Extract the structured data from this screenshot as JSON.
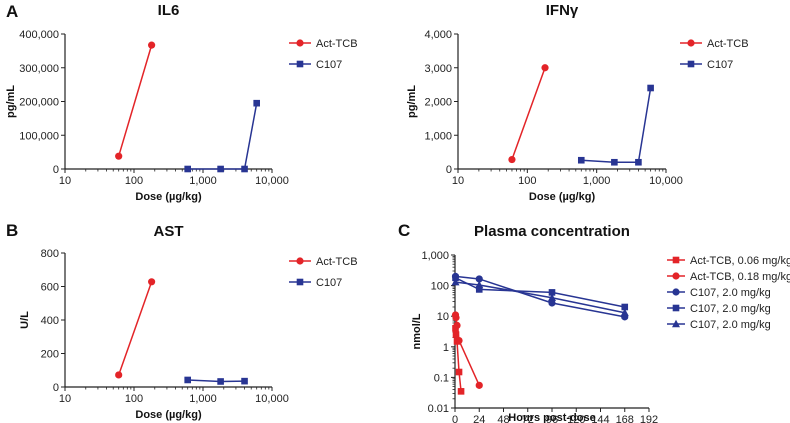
{
  "panel_letters": [
    "A",
    "B",
    "C"
  ],
  "colors": {
    "act": "#e32428",
    "c107": "#283593",
    "axis": "#222222"
  },
  "chart_data": [
    {
      "id": "il6",
      "type": "line",
      "title": "IL6",
      "xlabel": "Dose (µg/kg)",
      "ylabel": "pg/mL",
      "xscale": "log",
      "xlim": [
        10,
        10000
      ],
      "xticks": [
        10,
        100,
        1000,
        10000
      ],
      "xtick_labels": [
        "10",
        "100",
        "1,000",
        "10,000"
      ],
      "ylim": [
        0,
        400000
      ],
      "yticks": [
        0,
        100000,
        200000,
        300000,
        400000
      ],
      "ytick_labels": [
        "0",
        "100,000",
        "200,000",
        "300,000",
        "400,000"
      ],
      "legend_position": "top-right",
      "series": [
        {
          "name": "Act-TCB",
          "color": "#e32428",
          "marker": "circle",
          "x": [
            60,
            180
          ],
          "y": [
            38000,
            367000
          ]
        },
        {
          "name": "C107",
          "color": "#283593",
          "marker": "square",
          "x": [
            600,
            1800,
            4000,
            6000
          ],
          "y": [
            0,
            0,
            0,
            195000
          ]
        }
      ]
    },
    {
      "id": "ifng",
      "type": "line",
      "title": "IFNγ",
      "xlabel": "Dose (µg/kg)",
      "ylabel": "pg/mL",
      "xscale": "log",
      "xlim": [
        10,
        10000
      ],
      "xticks": [
        10,
        100,
        1000,
        10000
      ],
      "xtick_labels": [
        "10",
        "100",
        "1,000",
        "10,000"
      ],
      "ylim": [
        0,
        4000
      ],
      "yticks": [
        0,
        1000,
        2000,
        3000,
        4000
      ],
      "ytick_labels": [
        "0",
        "1,000",
        "2,000",
        "3,000",
        "4,000"
      ],
      "legend_position": "top-right",
      "series": [
        {
          "name": "Act-TCB",
          "color": "#e32428",
          "marker": "circle",
          "x": [
            60,
            180
          ],
          "y": [
            280,
            3000
          ]
        },
        {
          "name": "C107",
          "color": "#283593",
          "marker": "square",
          "x": [
            600,
            1800,
            4000,
            6000
          ],
          "y": [
            260,
            200,
            200,
            2400
          ]
        }
      ]
    },
    {
      "id": "ast",
      "type": "line",
      "title": "AST",
      "xlabel": "Dose (µg/kg)",
      "ylabel": "U/L",
      "xscale": "log",
      "xlim": [
        10,
        10000
      ],
      "xticks": [
        10,
        100,
        1000,
        10000
      ],
      "xtick_labels": [
        "10",
        "100",
        "1,000",
        "10,000"
      ],
      "ylim": [
        0,
        800
      ],
      "yticks": [
        0,
        200,
        400,
        600,
        800
      ],
      "ytick_labels": [
        "0",
        "200",
        "400",
        "600",
        "800"
      ],
      "legend_position": "top-right",
      "series": [
        {
          "name": "Act-TCB",
          "color": "#e32428",
          "marker": "circle",
          "x": [
            60,
            180
          ],
          "y": [
            72,
            628
          ]
        },
        {
          "name": "C107",
          "color": "#283593",
          "marker": "square",
          "x": [
            600,
            1800,
            4000
          ],
          "y": [
            42,
            33,
            35
          ]
        }
      ]
    },
    {
      "id": "pk",
      "type": "line",
      "title": "Plasma concentration",
      "xlabel": "Hours post-dose",
      "ylabel": "nmol/L",
      "xscale": "linear",
      "xlim": [
        0,
        192
      ],
      "xticks": [
        0,
        24,
        48,
        72,
        96,
        120,
        144,
        168,
        192
      ],
      "xtick_labels": [
        "0",
        "24",
        "48",
        "72",
        "96",
        "120",
        "144",
        "168",
        "192"
      ],
      "yscale": "log",
      "ylim": [
        0.01,
        1000
      ],
      "yticks": [
        0.01,
        0.1,
        1,
        10,
        100,
        1000
      ],
      "ytick_labels": [
        "0.01",
        "0.1",
        "1",
        "10",
        "100",
        "1,000"
      ],
      "legend_position": "right",
      "series": [
        {
          "name": "Act-TCB, 0.06 mg/kg",
          "color": "#e32428",
          "marker": "square",
          "x": [
            0.5,
            1,
            2,
            4,
            6
          ],
          "y": [
            4,
            2.5,
            1.5,
            0.15,
            0.035
          ]
        },
        {
          "name": "Act-TCB, 0.18 mg/kg",
          "color": "#e32428",
          "marker": "circle",
          "x": [
            0.5,
            1,
            2,
            4,
            24
          ],
          "y": [
            11,
            9,
            5,
            1.6,
            0.055
          ]
        },
        {
          "name": "C107, 2.0 mg/kg",
          "color": "#283593",
          "marker": "circle",
          "x": [
            0.5,
            24,
            96,
            168
          ],
          "y": [
            200,
            165,
            27,
            9.5
          ]
        },
        {
          "name": "C107, 2.0 mg/kg",
          "color": "#283593",
          "marker": "square",
          "x": [
            0.5,
            24,
            96,
            168
          ],
          "y": [
            180,
            75,
            60,
            20
          ]
        },
        {
          "name": "C107, 2.0 mg/kg",
          "color": "#283593",
          "marker": "triangle",
          "x": [
            0.5,
            24,
            96,
            168
          ],
          "y": [
            130,
            105,
            40,
            13
          ]
        }
      ]
    }
  ]
}
